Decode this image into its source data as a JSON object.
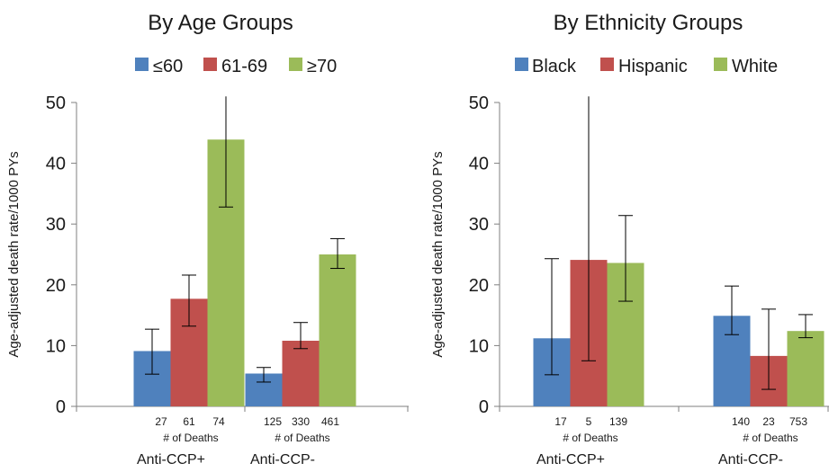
{
  "chart_data": [
    {
      "type": "bar",
      "title": "By Age Groups",
      "ylabel": "Age-adjusted death rate/1000 PYs",
      "ylim": [
        0,
        50
      ],
      "yticks": [
        0,
        10,
        20,
        30,
        40,
        50
      ],
      "grid": false,
      "legend_position": "top",
      "categories": [
        "Anti-CCP+",
        "Anti-CCP-"
      ],
      "deaths_label": "# of Deaths",
      "series": [
        {
          "name": "≤60",
          "color": "#4f81bd",
          "values": [
            9.1,
            5.4
          ],
          "err_low": [
            5.3,
            4.0
          ],
          "err_high": [
            12.7,
            6.4
          ],
          "deaths": [
            "27",
            "125"
          ]
        },
        {
          "name": "61-69",
          "color": "#c0504d",
          "values": [
            17.7,
            10.8
          ],
          "err_low": [
            13.2,
            9.5
          ],
          "err_high": [
            21.6,
            13.8
          ],
          "deaths": [
            "61",
            "330"
          ]
        },
        {
          "name": "≥70",
          "color": "#9bbb59",
          "values": [
            43.9,
            25.0
          ],
          "err_low": [
            32.8,
            22.7
          ],
          "err_high": [
            51.0,
            27.6
          ],
          "deaths": [
            "74",
            "461"
          ]
        }
      ]
    },
    {
      "type": "bar",
      "title": "By Ethnicity Groups",
      "ylabel": "Age-adjusted death rate/1000 PYs",
      "ylim": [
        0,
        50
      ],
      "yticks": [
        0,
        10,
        20,
        30,
        40,
        50
      ],
      "grid": false,
      "legend_position": "top",
      "categories": [
        "Anti-CCP+",
        "Anti-CCP-"
      ],
      "deaths_label": "# of Deaths",
      "series": [
        {
          "name": "Black",
          "color": "#4f81bd",
          "values": [
            11.2,
            14.9
          ],
          "err_low": [
            5.2,
            11.8
          ],
          "err_high": [
            24.3,
            19.8
          ],
          "deaths": [
            "17",
            "140"
          ]
        },
        {
          "name": "Hispanic",
          "color": "#c0504d",
          "values": [
            24.1,
            8.3
          ],
          "err_low": [
            7.5,
            2.8
          ],
          "err_high": [
            51.0,
            16.0
          ],
          "deaths": [
            "5",
            "23"
          ]
        },
        {
          "name": "White",
          "color": "#9bbb59",
          "values": [
            23.6,
            12.4
          ],
          "err_low": [
            17.3,
            11.3
          ],
          "err_high": [
            31.4,
            15.1
          ],
          "deaths": [
            "139",
            "753"
          ]
        }
      ]
    }
  ]
}
